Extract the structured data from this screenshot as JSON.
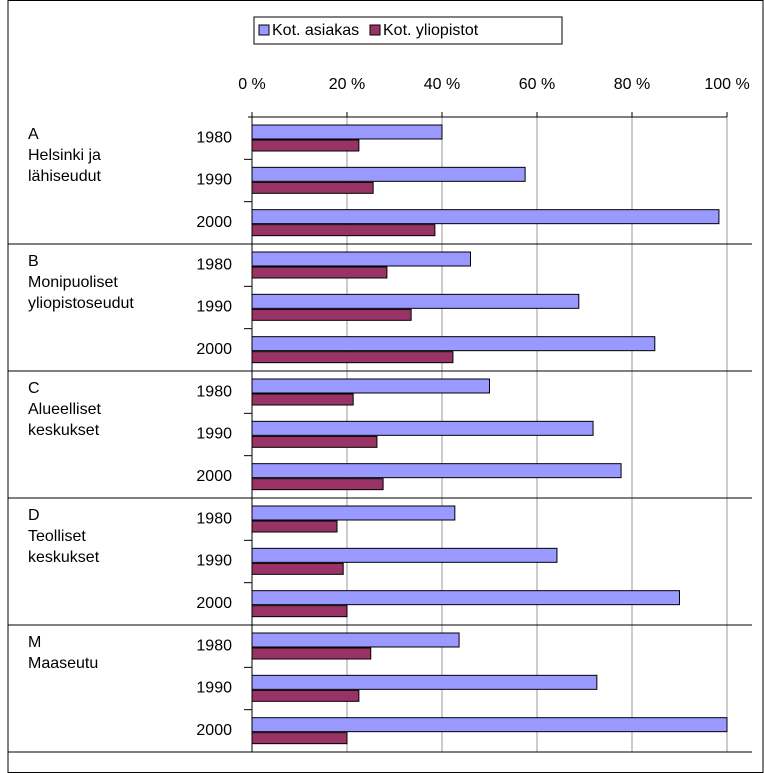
{
  "chart_data": {
    "type": "bar",
    "orientation": "horizontal",
    "legend_position": "top",
    "grid": true,
    "groups": [
      [
        "A",
        "Helsinki ja",
        "lähiseudut"
      ],
      [
        "B",
        "Monipuoliset",
        "yliopistoseudut"
      ],
      [
        "C",
        "Alueelliset",
        "keskukset"
      ],
      [
        "D",
        "Teolliset",
        "keskukset"
      ],
      [
        "M",
        "Maaseutu"
      ]
    ],
    "categories": [
      "1980",
      "1990",
      "2000",
      "1980",
      "1990",
      "2000",
      "1980",
      "1990",
      "2000",
      "1980",
      "1990",
      "2000",
      "1980",
      "1990",
      "2000"
    ],
    "series": [
      {
        "name": "Kot. asiakas",
        "color": "#9999ff",
        "values": [
          40,
          57.5,
          98.3,
          46,
          68.8,
          84.8,
          50,
          71.8,
          77.7,
          42.7,
          64.2,
          90,
          43.6,
          72.6,
          100
        ]
      },
      {
        "name": "Kot. yliopistot",
        "color": "#993366",
        "values": [
          22.5,
          25.5,
          38.5,
          28.4,
          33.5,
          42.3,
          21.3,
          26.3,
          27.6,
          17.9,
          19.2,
          20,
          25,
          22.5,
          20
        ]
      }
    ],
    "xlim": [
      0,
      100
    ],
    "xticks": [
      {
        "value": 0,
        "label": "0 %"
      },
      {
        "value": 20,
        "label": "20 %"
      },
      {
        "value": 40,
        "label": "40 %"
      },
      {
        "value": 60,
        "label": "60 %"
      },
      {
        "value": 80,
        "label": "80 %"
      },
      {
        "value": 100,
        "label": "100 %"
      }
    ]
  }
}
